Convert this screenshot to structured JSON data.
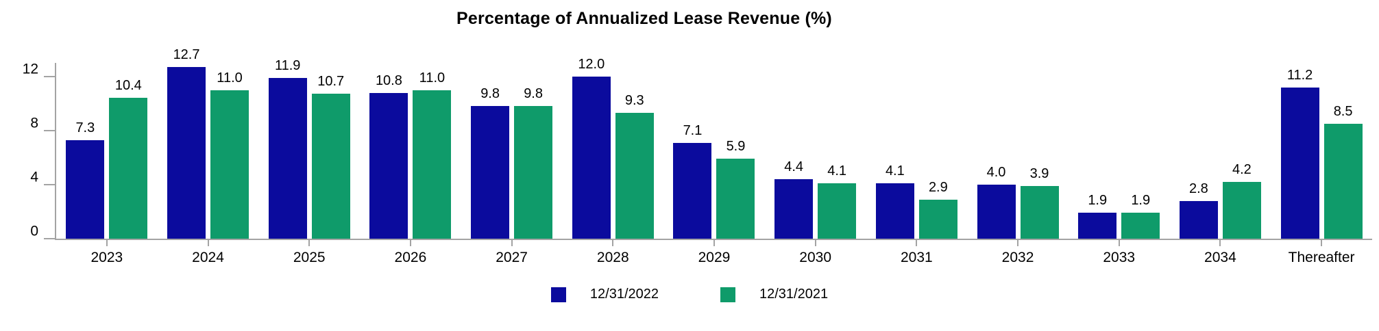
{
  "chart_data": {
    "type": "bar",
    "title": "Percentage of Annualized Lease Revenue (%)",
    "categories": [
      "2023",
      "2024",
      "2025",
      "2026",
      "2027",
      "2028",
      "2029",
      "2030",
      "2031",
      "2032",
      "2033",
      "2034",
      "Thereafter"
    ],
    "series": [
      {
        "name": "12/31/2022",
        "color": "#0b0b9d",
        "values": [
          7.3,
          12.7,
          11.9,
          10.8,
          9.8,
          12.0,
          7.1,
          4.4,
          4.1,
          4.0,
          1.9,
          2.8,
          11.2
        ]
      },
      {
        "name": "12/31/2021",
        "color": "#0f9b6a",
        "values": [
          10.4,
          11.0,
          10.7,
          11.0,
          9.8,
          9.3,
          5.9,
          4.1,
          2.9,
          3.9,
          1.9,
          4.2,
          8.5
        ]
      }
    ],
    "xlabel": "",
    "ylabel": "",
    "yticks": [
      0,
      4,
      8,
      12
    ],
    "ylim": [
      0,
      13
    ],
    "grid": false,
    "value_labels": true,
    "value_label_decimals": 1,
    "legend_position": "bottom"
  },
  "colors": {
    "axis": "#a3a3a3",
    "text": "#000000",
    "background": "#ffffff"
  }
}
